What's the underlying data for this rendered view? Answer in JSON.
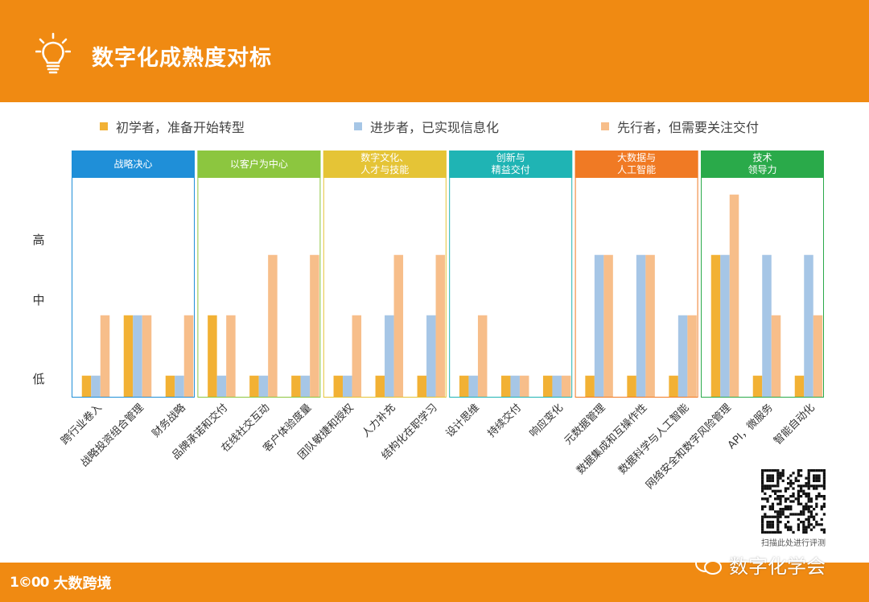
{
  "header": {
    "title": "数字化成熟度对标"
  },
  "legend": [
    {
      "label": "初学者，准备开始转型",
      "color": "#f2b134"
    },
    {
      "label": "进步者，已实现信息化",
      "color": "#a6c6e6"
    },
    {
      "label": "先行者，但需要关注交付",
      "color": "#f7be8a"
    }
  ],
  "chart_data": {
    "type": "bar",
    "y_levels": [
      "低",
      "中",
      "高"
    ],
    "ylim": [
      0,
      3.3
    ],
    "series_names": [
      "初学者，准备开始转型",
      "进步者，已实现信息化",
      "先行者，但需要关注交付"
    ],
    "groups": [
      {
        "title": "战略决心",
        "color": "#1f8fd8",
        "categories": [
          {
            "label": "跨行业卷入",
            "values": [
              0.35,
              0.35,
              1.35
            ]
          },
          {
            "label": "战略投资组合管理",
            "values": [
              1.35,
              1.35,
              1.35
            ]
          },
          {
            "label": "财务战略",
            "values": [
              0.35,
              0.35,
              1.35
            ]
          }
        ]
      },
      {
        "title": "以客户为中心",
        "color": "#8cc63f",
        "categories": [
          {
            "label": "品牌承诺和交付",
            "values": [
              1.35,
              0.35,
              1.35
            ]
          },
          {
            "label": "在线社交互动",
            "values": [
              0.35,
              0.35,
              2.35
            ]
          },
          {
            "label": "客户体验度量",
            "values": [
              0.35,
              0.35,
              2.35
            ]
          }
        ]
      },
      {
        "title": "数字文化、\n人才与技能",
        "color": "#e5c436",
        "categories": [
          {
            "label": "团队敏捷和授权",
            "values": [
              0.35,
              0.35,
              1.35
            ]
          },
          {
            "label": "人力补充",
            "values": [
              0.35,
              1.35,
              2.35
            ]
          },
          {
            "label": "结构化在职学习",
            "values": [
              0.35,
              1.35,
              2.35
            ]
          }
        ]
      },
      {
        "title": "创新与\n精益交付",
        "color": "#1fb4b4",
        "categories": [
          {
            "label": "设计思维",
            "values": [
              0.35,
              0.35,
              1.35
            ]
          },
          {
            "label": "持续交付",
            "values": [
              0.35,
              0.35,
              0.35
            ]
          },
          {
            "label": "响应变化",
            "values": [
              0.35,
              0.35,
              0.35
            ]
          }
        ]
      },
      {
        "title": "大数据与\n人工智能",
        "color": "#f07a24",
        "categories": [
          {
            "label": "元数据管理",
            "values": [
              0.35,
              2.35,
              2.35
            ]
          },
          {
            "label": "数据集成和互操作性",
            "values": [
              0.35,
              2.35,
              2.35
            ]
          },
          {
            "label": "数据科学与人工智能",
            "values": [
              0.35,
              1.35,
              1.35
            ]
          }
        ]
      },
      {
        "title": "技术\n领导力",
        "color": "#2aaa4a",
        "categories": [
          {
            "label": "网络安全和数字风险管理",
            "values": [
              2.35,
              2.35,
              3.35
            ]
          },
          {
            "label": "API，微服务",
            "values": [
              0.35,
              2.35,
              1.35
            ]
          },
          {
            "label": "智能自动化",
            "values": [
              0.35,
              2.35,
              1.35
            ]
          }
        ]
      }
    ]
  },
  "qr": {
    "caption": "扫描此处进行评测"
  },
  "footer": {
    "logo": "1©00",
    "brand": "大数跨境"
  },
  "wechat": {
    "label": "数字化学会"
  }
}
